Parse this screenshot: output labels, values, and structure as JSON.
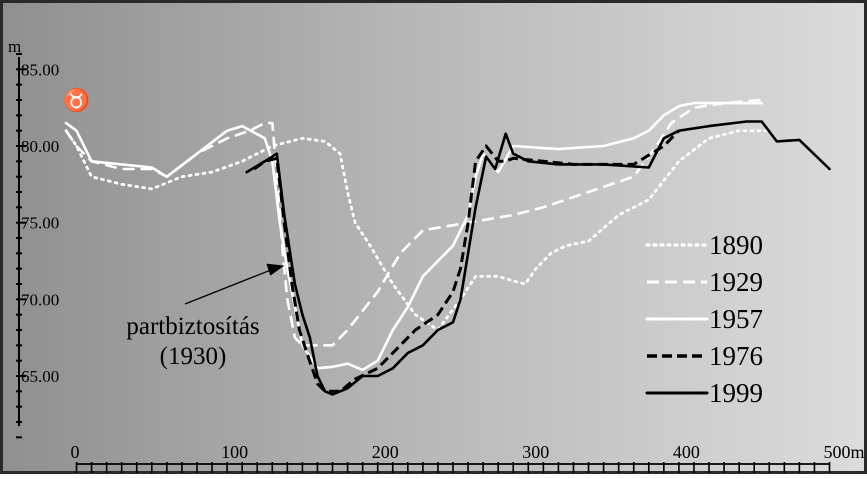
{
  "chart_data": {
    "type": "line",
    "ylabel": "m",
    "xunit": "m",
    "xlim": [
      0,
      500
    ],
    "ylim": [
      61,
      86
    ],
    "yticks": [
      {
        "value": 85,
        "label": "85.00"
      },
      {
        "value": 80,
        "label": "80.00"
      },
      {
        "value": 75,
        "label": "75.00"
      },
      {
        "value": 70,
        "label": "70.00"
      },
      {
        "value": 65,
        "label": "65.00"
      }
    ],
    "xticks": [
      {
        "value": 0,
        "label": "0"
      },
      {
        "value": 100,
        "label": "100"
      },
      {
        "value": 200,
        "label": "200"
      },
      {
        "value": 300,
        "label": "300"
      },
      {
        "value": 400,
        "label": "400"
      },
      {
        "value": 500,
        "label": "500m"
      }
    ],
    "legend_position": "right",
    "annotation": {
      "line1": "partbiztosítás",
      "line2": "(1930)",
      "arrow_to": [
        138,
        72.2
      ]
    },
    "marker": {
      "x": 0,
      "y": 82.5,
      "symbol": "♉"
    },
    "series": [
      {
        "name": "1890",
        "dash": "dotted",
        "color": "#ffffff",
        "points": [
          [
            -7,
            81
          ],
          [
            0,
            80
          ],
          [
            10,
            78
          ],
          [
            30,
            77.5
          ],
          [
            50,
            77.2
          ],
          [
            70,
            78
          ],
          [
            90,
            78.3
          ],
          [
            110,
            79
          ],
          [
            130,
            80
          ],
          [
            150,
            80.5
          ],
          [
            165,
            80.3
          ],
          [
            175,
            79.5
          ],
          [
            180,
            77
          ],
          [
            185,
            75
          ],
          [
            195,
            73.5
          ],
          [
            210,
            71
          ],
          [
            225,
            69
          ],
          [
            240,
            68
          ],
          [
            255,
            70
          ],
          [
            265,
            71.5
          ],
          [
            280,
            71.5
          ],
          [
            290,
            71.2
          ],
          [
            298,
            71
          ],
          [
            305,
            72
          ],
          [
            315,
            73
          ],
          [
            325,
            73.5
          ],
          [
            340,
            73.8
          ],
          [
            360,
            75.5
          ],
          [
            380,
            76.5
          ],
          [
            400,
            79
          ],
          [
            420,
            80.5
          ],
          [
            440,
            81
          ],
          [
            460,
            81
          ]
        ]
      },
      {
        "name": "1929",
        "dash": "dashed-light",
        "color": "#ffffff",
        "points": [
          [
            -7,
            81
          ],
          [
            0,
            80
          ],
          [
            10,
            79
          ],
          [
            30,
            78.5
          ],
          [
            50,
            78.5
          ],
          [
            60,
            78
          ],
          [
            80,
            79.5
          ],
          [
            100,
            80.5
          ],
          [
            115,
            81
          ],
          [
            125,
            81.5
          ],
          [
            130,
            81.5
          ],
          [
            134,
            77
          ],
          [
            137,
            73
          ],
          [
            140,
            70
          ],
          [
            145,
            67.5
          ],
          [
            150,
            67
          ],
          [
            160,
            67
          ],
          [
            170,
            67
          ],
          [
            180,
            68
          ],
          [
            200,
            70.5
          ],
          [
            215,
            73
          ],
          [
            230,
            74.5
          ],
          [
            260,
            75
          ],
          [
            290,
            75.5
          ],
          [
            310,
            76
          ],
          [
            340,
            77
          ],
          [
            370,
            78
          ],
          [
            385,
            80
          ],
          [
            395,
            81.5
          ],
          [
            410,
            82.5
          ],
          [
            430,
            82.8
          ],
          [
            455,
            83
          ]
        ]
      },
      {
        "name": "1957",
        "dash": "solid",
        "color": "#ffffff",
        "points": [
          [
            -7,
            81.5
          ],
          [
            0,
            81
          ],
          [
            10,
            79
          ],
          [
            30,
            78.8
          ],
          [
            50,
            78.6
          ],
          [
            60,
            78
          ],
          [
            80,
            79.5
          ],
          [
            100,
            81
          ],
          [
            110,
            81.3
          ],
          [
            125,
            80.5
          ],
          [
            130,
            79
          ],
          [
            135,
            75
          ],
          [
            140,
            72
          ],
          [
            150,
            67
          ],
          [
            160,
            65.5
          ],
          [
            170,
            65.6
          ],
          [
            180,
            65.8
          ],
          [
            190,
            65.4
          ],
          [
            200,
            66
          ],
          [
            210,
            68
          ],
          [
            220,
            69.5
          ],
          [
            230,
            71.5
          ],
          [
            250,
            73.5
          ],
          [
            260,
            75.5
          ],
          [
            265,
            78
          ],
          [
            270,
            79.5
          ],
          [
            280,
            78.3
          ],
          [
            290,
            80
          ],
          [
            320,
            79.8
          ],
          [
            350,
            80
          ],
          [
            370,
            80.5
          ],
          [
            380,
            81
          ],
          [
            390,
            82
          ],
          [
            400,
            82.6
          ],
          [
            410,
            82.8
          ],
          [
            455,
            82.8
          ]
        ]
      },
      {
        "name": "1976",
        "dash": "dashed",
        "color": "#000000",
        "points": [
          [
            118,
            78.5
          ],
          [
            125,
            79
          ],
          [
            133,
            79.2
          ],
          [
            138,
            75
          ],
          [
            143,
            71
          ],
          [
            148,
            68
          ],
          [
            153,
            66.5
          ],
          [
            160,
            64.5
          ],
          [
            165,
            64
          ],
          [
            175,
            64
          ],
          [
            185,
            64.8
          ],
          [
            200,
            65.5
          ],
          [
            210,
            66.5
          ],
          [
            225,
            68
          ],
          [
            240,
            69
          ],
          [
            250,
            70.5
          ],
          [
            255,
            72
          ],
          [
            260,
            75
          ],
          [
            265,
            79
          ],
          [
            272,
            80
          ],
          [
            280,
            79
          ],
          [
            285,
            79
          ],
          [
            290,
            79.2
          ],
          [
            310,
            79
          ],
          [
            330,
            78.8
          ],
          [
            370,
            78.8
          ],
          [
            390,
            80
          ],
          [
            400,
            81
          ]
        ]
      },
      {
        "name": "1999",
        "dash": "solid",
        "color": "#000000",
        "points": [
          [
            113,
            78.3
          ],
          [
            125,
            79
          ],
          [
            133,
            79.5
          ],
          [
            138,
            75.5
          ],
          [
            145,
            71
          ],
          [
            150,
            69
          ],
          [
            155,
            67.5
          ],
          [
            160,
            65
          ],
          [
            165,
            64
          ],
          [
            170,
            63.8
          ],
          [
            180,
            64.2
          ],
          [
            190,
            65
          ],
          [
            200,
            65
          ],
          [
            210,
            65.5
          ],
          [
            220,
            66.5
          ],
          [
            230,
            67
          ],
          [
            240,
            68
          ],
          [
            250,
            68.5
          ],
          [
            255,
            70
          ],
          [
            260,
            73
          ],
          [
            265,
            76
          ],
          [
            272,
            79.3
          ],
          [
            278,
            78.5
          ],
          [
            285,
            80.8
          ],
          [
            290,
            79.5
          ],
          [
            300,
            79
          ],
          [
            320,
            78.8
          ],
          [
            350,
            78.8
          ],
          [
            380,
            78.6
          ],
          [
            390,
            80.5
          ],
          [
            400,
            81
          ],
          [
            420,
            81.3
          ],
          [
            445,
            81.6
          ],
          [
            455,
            81.6
          ],
          [
            465,
            80.3
          ],
          [
            480,
            80.4
          ],
          [
            500,
            78.5
          ]
        ]
      }
    ]
  }
}
